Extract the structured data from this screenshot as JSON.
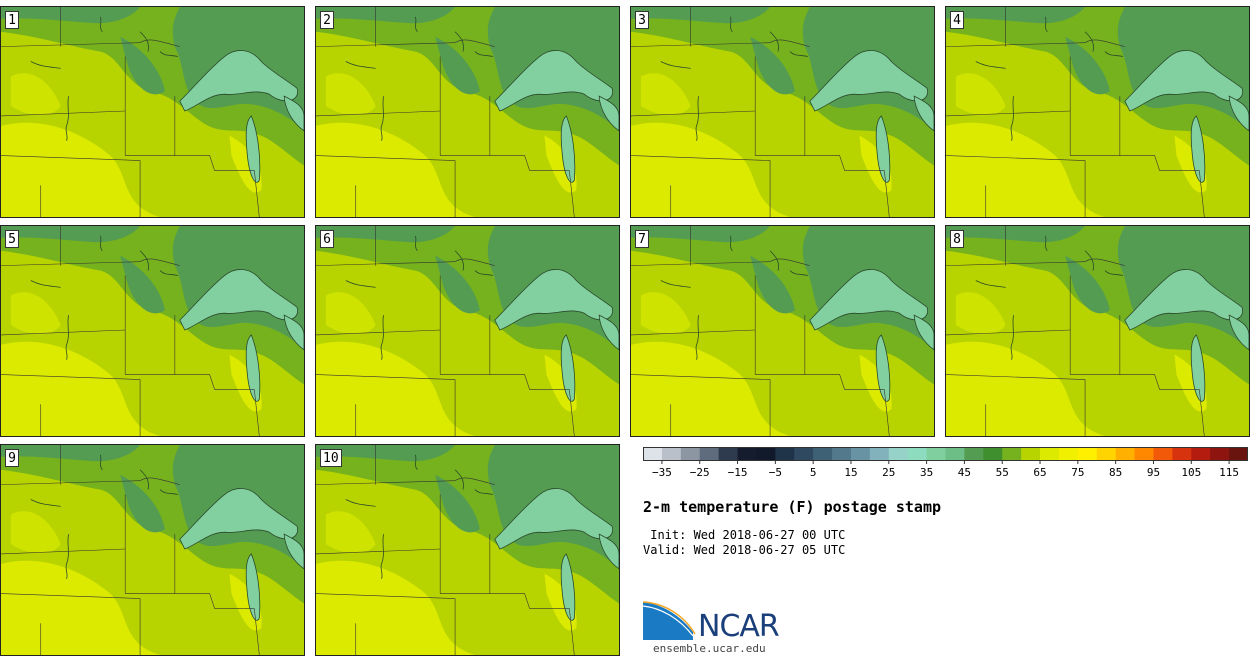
{
  "panels": [
    "1",
    "2",
    "3",
    "4",
    "5",
    "6",
    "7",
    "8",
    "9",
    "10"
  ],
  "title": "2-m temperature (F) postage stamp",
  "init_line": " Init: Wed 2018-06-27 00 UTC",
  "valid_line": "Valid: Wed 2018-06-27 05 UTC",
  "logo": {
    "name": "NCAR",
    "url": "ensemble.ucar.edu"
  },
  "colorbar": {
    "ticks": [
      "−35",
      "−25",
      "−15",
      "−5",
      "5",
      "15",
      "25",
      "35",
      "45",
      "55",
      "65",
      "75",
      "85",
      "95",
      "105",
      "115"
    ],
    "colors": [
      "#dde3e9",
      "#b9c0c9",
      "#8c96a3",
      "#5f6c7d",
      "#2e3a4d",
      "#141c2d",
      "#101a2b",
      "#1f3349",
      "#2f4a60",
      "#3f6176",
      "#52798c",
      "#6893a3",
      "#82b2bb",
      "#97d2c9",
      "#8edcc0",
      "#7fcf9f",
      "#6dbd86",
      "#549c52",
      "#3f8f2e",
      "#75b21d",
      "#b8d400",
      "#dcea00",
      "#f0f000",
      "#fff000",
      "#ffd400",
      "#ffb000",
      "#ff8800",
      "#f25a0a",
      "#d8330f",
      "#b51c10",
      "#8e1410",
      "#6a1410"
    ],
    "vmin": -40,
    "vmax": 120
  }
}
